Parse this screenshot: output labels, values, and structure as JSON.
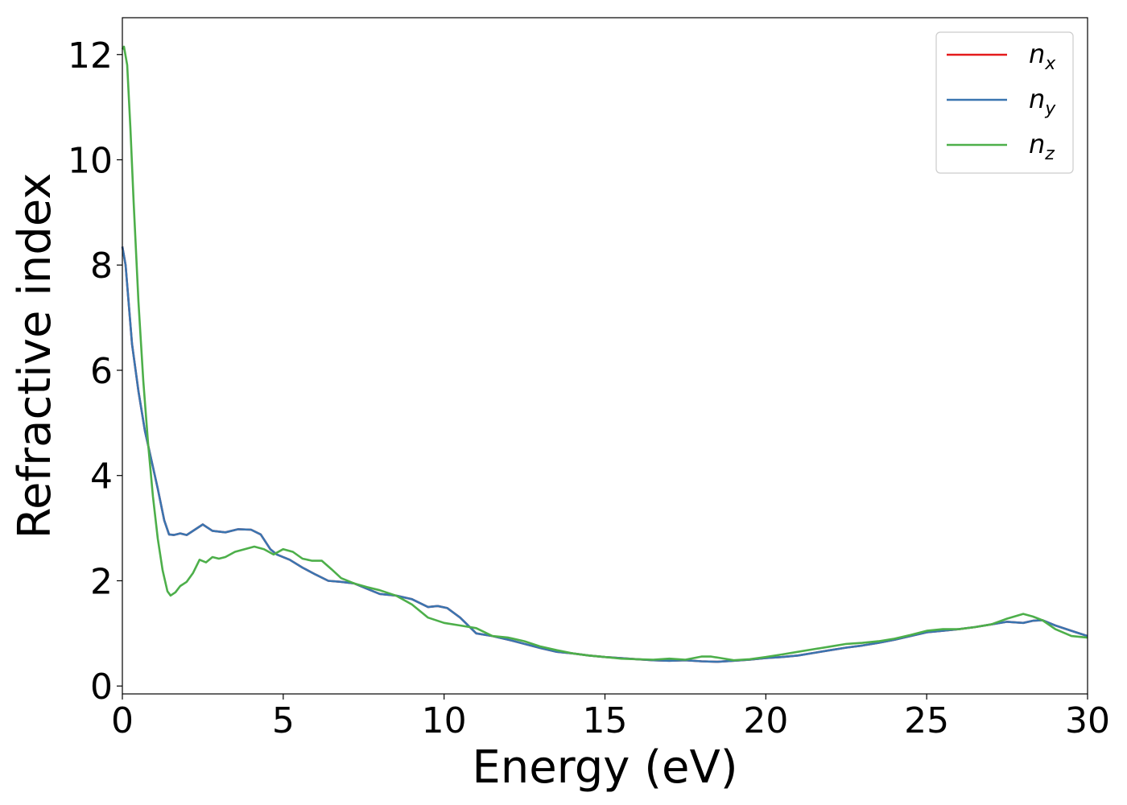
{
  "chart_data": {
    "type": "line",
    "xlabel": "Energy (eV)",
    "ylabel": "Refractive index",
    "xlim": [
      0,
      30
    ],
    "ylim": [
      -0.15,
      12.7
    ],
    "xticks": [
      0,
      5,
      10,
      15,
      20,
      25,
      30
    ],
    "xtick_labels": [
      "0",
      "5",
      "10",
      "15",
      "20",
      "25",
      "30"
    ],
    "yticks": [
      0,
      2,
      4,
      6,
      8,
      10,
      12
    ],
    "ytick_labels": [
      "0",
      "2",
      "4",
      "6",
      "8",
      "10",
      "12"
    ],
    "grid": false,
    "legend_position": "top-right",
    "series": [
      {
        "name": "n_x",
        "legend_main": "n",
        "legend_sub": "x",
        "color": "#e41a1c",
        "x": [
          0,
          0.1,
          0.3,
          0.5,
          0.7,
          0.9,
          1.1,
          1.3,
          1.45,
          1.6,
          1.8,
          2.0,
          2.2,
          2.5,
          2.8,
          3.2,
          3.6,
          4.0,
          4.3,
          4.6,
          4.8,
          5.2,
          5.6,
          6.0,
          6.4,
          6.8,
          7.2,
          7.6,
          8.0,
          8.5,
          9.0,
          9.5,
          9.8,
          10.1,
          10.5,
          11.0,
          11.5,
          12.0,
          12.5,
          13.0,
          13.5,
          14.0,
          14.5,
          15.0,
          15.5,
          16.0,
          16.5,
          17.0,
          17.5,
          18.0,
          18.5,
          19.0,
          19.5,
          20.0,
          20.5,
          21.0,
          21.5,
          22.0,
          22.5,
          23.0,
          23.5,
          24.0,
          24.5,
          25.0,
          25.5,
          26.0,
          26.5,
          27.0,
          27.5,
          28.0,
          28.3,
          28.6,
          29.0,
          29.5,
          30.0
        ],
        "values": [
          8.35,
          8.0,
          6.5,
          5.6,
          4.85,
          4.3,
          3.75,
          3.15,
          2.88,
          2.87,
          2.9,
          2.87,
          2.95,
          3.07,
          2.95,
          2.92,
          2.98,
          2.97,
          2.88,
          2.6,
          2.5,
          2.4,
          2.25,
          2.12,
          2.0,
          1.98,
          1.95,
          1.85,
          1.75,
          1.72,
          1.65,
          1.5,
          1.52,
          1.48,
          1.3,
          1.0,
          0.95,
          0.88,
          0.8,
          0.72,
          0.65,
          0.62,
          0.58,
          0.55,
          0.53,
          0.51,
          0.49,
          0.48,
          0.49,
          0.47,
          0.46,
          0.48,
          0.5,
          0.53,
          0.55,
          0.58,
          0.63,
          0.68,
          0.73,
          0.77,
          0.82,
          0.88,
          0.95,
          1.02,
          1.05,
          1.08,
          1.12,
          1.17,
          1.22,
          1.2,
          1.24,
          1.25,
          1.15,
          1.05,
          0.95
        ]
      },
      {
        "name": "n_y",
        "legend_main": "n",
        "legend_sub": "y",
        "color": "#3a75b0",
        "x": [
          0,
          0.1,
          0.3,
          0.5,
          0.7,
          0.9,
          1.1,
          1.3,
          1.45,
          1.6,
          1.8,
          2.0,
          2.2,
          2.5,
          2.8,
          3.2,
          3.6,
          4.0,
          4.3,
          4.6,
          4.8,
          5.2,
          5.6,
          6.0,
          6.4,
          6.8,
          7.2,
          7.6,
          8.0,
          8.5,
          9.0,
          9.5,
          9.8,
          10.1,
          10.5,
          11.0,
          11.5,
          12.0,
          12.5,
          13.0,
          13.5,
          14.0,
          14.5,
          15.0,
          15.5,
          16.0,
          16.5,
          17.0,
          17.5,
          18.0,
          18.5,
          19.0,
          19.5,
          20.0,
          20.5,
          21.0,
          21.5,
          22.0,
          22.5,
          23.0,
          23.5,
          24.0,
          24.5,
          25.0,
          25.5,
          26.0,
          26.5,
          27.0,
          27.5,
          28.0,
          28.3,
          28.6,
          29.0,
          29.5,
          30.0
        ],
        "values": [
          8.35,
          8.0,
          6.5,
          5.6,
          4.85,
          4.3,
          3.75,
          3.15,
          2.88,
          2.87,
          2.9,
          2.87,
          2.95,
          3.07,
          2.95,
          2.92,
          2.98,
          2.97,
          2.88,
          2.6,
          2.5,
          2.4,
          2.25,
          2.12,
          2.0,
          1.98,
          1.95,
          1.85,
          1.75,
          1.72,
          1.65,
          1.5,
          1.52,
          1.48,
          1.3,
          1.0,
          0.95,
          0.88,
          0.8,
          0.72,
          0.65,
          0.62,
          0.58,
          0.55,
          0.53,
          0.51,
          0.49,
          0.48,
          0.49,
          0.47,
          0.46,
          0.48,
          0.5,
          0.53,
          0.55,
          0.58,
          0.63,
          0.68,
          0.73,
          0.77,
          0.82,
          0.88,
          0.95,
          1.02,
          1.05,
          1.08,
          1.12,
          1.17,
          1.22,
          1.2,
          1.24,
          1.25,
          1.15,
          1.05,
          0.95
        ]
      },
      {
        "name": "n_z",
        "legend_main": "n",
        "legend_sub": "z",
        "color": "#4daf4a",
        "x": [
          0,
          0.05,
          0.15,
          0.25,
          0.35,
          0.5,
          0.65,
          0.8,
          0.95,
          1.1,
          1.25,
          1.4,
          1.5,
          1.65,
          1.8,
          2.0,
          2.2,
          2.4,
          2.6,
          2.8,
          3.0,
          3.2,
          3.5,
          3.8,
          4.1,
          4.4,
          4.7,
          5.0,
          5.3,
          5.6,
          5.9,
          6.2,
          6.5,
          6.8,
          7.2,
          7.6,
          8.0,
          8.5,
          9.0,
          9.5,
          10.0,
          10.5,
          11.0,
          11.5,
          12.0,
          12.5,
          13.0,
          13.5,
          14.0,
          14.5,
          15.0,
          15.5,
          16.0,
          16.5,
          17.0,
          17.5,
          18.0,
          18.3,
          18.6,
          19.0,
          19.5,
          20.0,
          20.5,
          21.0,
          21.5,
          22.0,
          22.5,
          23.0,
          23.5,
          24.0,
          24.5,
          25.0,
          25.5,
          26.0,
          26.5,
          27.0,
          27.5,
          28.0,
          28.3,
          28.6,
          29.0,
          29.5,
          30.0
        ],
        "values": [
          12.1,
          12.15,
          11.8,
          10.6,
          9.2,
          7.3,
          5.8,
          4.6,
          3.6,
          2.8,
          2.2,
          1.8,
          1.72,
          1.78,
          1.9,
          1.98,
          2.15,
          2.4,
          2.35,
          2.45,
          2.42,
          2.45,
          2.55,
          2.6,
          2.65,
          2.6,
          2.5,
          2.6,
          2.55,
          2.42,
          2.38,
          2.38,
          2.22,
          2.05,
          1.95,
          1.88,
          1.82,
          1.72,
          1.55,
          1.3,
          1.2,
          1.15,
          1.1,
          0.95,
          0.92,
          0.85,
          0.75,
          0.68,
          0.62,
          0.58,
          0.55,
          0.52,
          0.51,
          0.5,
          0.52,
          0.5,
          0.56,
          0.56,
          0.53,
          0.49,
          0.51,
          0.55,
          0.6,
          0.65,
          0.7,
          0.75,
          0.8,
          0.82,
          0.85,
          0.9,
          0.97,
          1.05,
          1.08,
          1.08,
          1.12,
          1.17,
          1.28,
          1.37,
          1.32,
          1.25,
          1.08,
          0.95,
          0.92
        ]
      }
    ]
  }
}
